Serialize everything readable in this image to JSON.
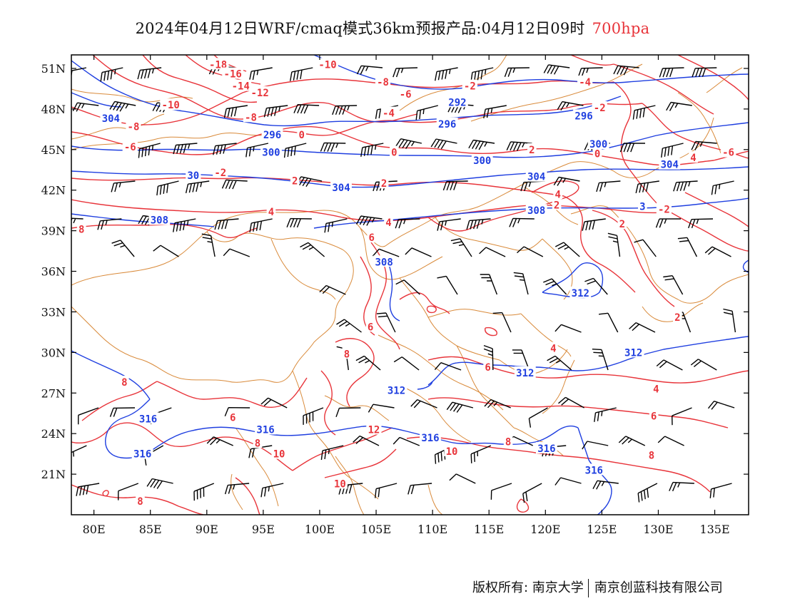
{
  "title": {
    "main": "2024年04月12日WRF/cmaq模式36km预报产品:04月12日09时",
    "level": "700hpa"
  },
  "colors": {
    "temperature_contour": "#e8343a",
    "height_contour": "#1f3fe0",
    "boundary": "#d98a3a",
    "wind_barb": "#000000",
    "level_text": "#e8343a"
  },
  "axes": {
    "lon_labels": [
      "80E",
      "85E",
      "90E",
      "95E",
      "100E",
      "105E",
      "110E",
      "115E",
      "120E",
      "125E",
      "130E",
      "135E"
    ],
    "lat_labels": [
      "51N",
      "48N",
      "45N",
      "42N",
      "39N",
      "36N",
      "33N",
      "30N",
      "27N",
      "24N",
      "21N"
    ],
    "lon_range": [
      78,
      138
    ],
    "lat_range": [
      18,
      52
    ]
  },
  "height_labels": [
    {
      "text": "304",
      "lon": 81.5,
      "lat": 47.3
    },
    {
      "text": "296",
      "lon": 111.3,
      "lat": 46.9
    },
    {
      "text": "296",
      "lon": 95.8,
      "lat": 46.1
    },
    {
      "text": "292",
      "lon": 112.2,
      "lat": 48.5
    },
    {
      "text": "296",
      "lon": 123.4,
      "lat": 47.5
    },
    {
      "text": "300",
      "lon": 95.7,
      "lat": 44.8
    },
    {
      "text": "300",
      "lon": 114.4,
      "lat": 44.2
    },
    {
      "text": "300",
      "lon": 124.7,
      "lat": 45.4
    },
    {
      "text": "30",
      "lon": 88.8,
      "lat": 43.1
    },
    {
      "text": "304",
      "lon": 101.9,
      "lat": 42.2
    },
    {
      "text": "304",
      "lon": 119.2,
      "lat": 43.0
    },
    {
      "text": "304",
      "lon": 131.0,
      "lat": 43.9
    },
    {
      "text": "308",
      "lon": 85.8,
      "lat": 39.8
    },
    {
      "text": "308",
      "lon": 119.2,
      "lat": 40.5
    },
    {
      "text": "3",
      "lon": 128.6,
      "lat": 40.8
    },
    {
      "text": "308",
      "lon": 105.7,
      "lat": 36.7
    },
    {
      "text": "312",
      "lon": 123.1,
      "lat": 34.4
    },
    {
      "text": "312",
      "lon": 127.8,
      "lat": 30.0
    },
    {
      "text": "312",
      "lon": 118.2,
      "lat": 28.5
    },
    {
      "text": "312",
      "lon": 106.8,
      "lat": 27.2
    },
    {
      "text": "316",
      "lon": 84.8,
      "lat": 25.1
    },
    {
      "text": "316",
      "lon": 84.3,
      "lat": 22.5
    },
    {
      "text": "316",
      "lon": 95.2,
      "lat": 24.3
    },
    {
      "text": "316",
      "lon": 109.8,
      "lat": 23.7
    },
    {
      "text": "316",
      "lon": 120.1,
      "lat": 22.9
    },
    {
      "text": "316",
      "lon": 124.3,
      "lat": 21.3
    }
  ],
  "temp_labels": [
    {
      "text": "-18",
      "lon": 91.0,
      "lat": 51.3
    },
    {
      "text": "-16",
      "lon": 92.3,
      "lat": 50.6
    },
    {
      "text": "-14",
      "lon": 93.0,
      "lat": 49.7
    },
    {
      "text": "-12",
      "lon": 94.7,
      "lat": 49.2
    },
    {
      "text": "-10",
      "lon": 86.8,
      "lat": 48.3
    },
    {
      "text": "-10",
      "lon": 100.7,
      "lat": 51.3
    },
    {
      "text": "-8",
      "lon": 83.5,
      "lat": 46.7
    },
    {
      "text": "-8",
      "lon": 105.6,
      "lat": 50.0
    },
    {
      "text": "-8",
      "lon": 93.9,
      "lat": 47.4
    },
    {
      "text": "-6",
      "lon": 83.2,
      "lat": 45.2
    },
    {
      "text": "-6",
      "lon": 107.6,
      "lat": 49.1
    },
    {
      "text": "-4",
      "lon": 106.1,
      "lat": 47.7
    },
    {
      "text": "-4",
      "lon": 123.5,
      "lat": 50.0
    },
    {
      "text": "-2",
      "lon": 113.3,
      "lat": 49.7
    },
    {
      "text": "-2",
      "lon": 124.8,
      "lat": 48.1
    },
    {
      "text": "0",
      "lon": 98.4,
      "lat": 46.1
    },
    {
      "text": "0",
      "lon": 106.6,
      "lat": 44.8
    },
    {
      "text": "0",
      "lon": 124.6,
      "lat": 44.7
    },
    {
      "text": "-2",
      "lon": 91.2,
      "lat": 43.3
    },
    {
      "text": "2",
      "lon": 97.8,
      "lat": 42.7
    },
    {
      "text": "2",
      "lon": 105.7,
      "lat": 42.5
    },
    {
      "text": "2",
      "lon": 118.8,
      "lat": 45.0
    },
    {
      "text": "4",
      "lon": 133.1,
      "lat": 44.4
    },
    {
      "text": "-6",
      "lon": 136.2,
      "lat": 44.8
    },
    {
      "text": "-2",
      "lon": 130.5,
      "lat": 40.6
    },
    {
      "text": "4",
      "lon": 95.7,
      "lat": 40.4
    },
    {
      "text": "4",
      "lon": 106.1,
      "lat": 39.6
    },
    {
      "text": "4",
      "lon": 121.1,
      "lat": 41.7
    },
    {
      "text": "2",
      "lon": 121.0,
      "lat": 40.9
    },
    {
      "text": "2",
      "lon": 126.8,
      "lat": 39.5
    },
    {
      "text": "8",
      "lon": 78.9,
      "lat": 39.1
    },
    {
      "text": "6",
      "lon": 104.6,
      "lat": 38.5
    },
    {
      "text": "6",
      "lon": 104.5,
      "lat": 31.9
    },
    {
      "text": "8",
      "lon": 102.4,
      "lat": 29.9
    },
    {
      "text": "6",
      "lon": 114.9,
      "lat": 28.9
    },
    {
      "text": "4",
      "lon": 120.7,
      "lat": 30.3
    },
    {
      "text": "2",
      "lon": 131.7,
      "lat": 32.6
    },
    {
      "text": "4",
      "lon": 129.8,
      "lat": 27.3
    },
    {
      "text": "6",
      "lon": 129.6,
      "lat": 25.3
    },
    {
      "text": "8",
      "lon": 129.4,
      "lat": 22.4
    },
    {
      "text": "8",
      "lon": 82.7,
      "lat": 27.8
    },
    {
      "text": "6",
      "lon": 92.3,
      "lat": 25.2
    },
    {
      "text": "8",
      "lon": 94.5,
      "lat": 23.3
    },
    {
      "text": "10",
      "lon": 96.4,
      "lat": 22.5
    },
    {
      "text": "12",
      "lon": 104.8,
      "lat": 24.3
    },
    {
      "text": "10",
      "lon": 111.7,
      "lat": 22.7
    },
    {
      "text": "8",
      "lon": 116.7,
      "lat": 23.4
    },
    {
      "text": "10",
      "lon": 101.8,
      "lat": 20.3
    },
    {
      "text": "8",
      "lon": 84.1,
      "lat": 19.0
    }
  ],
  "credit": {
    "left": "版权所有: 南京大学",
    "right": "南京创蓝科技有限公司"
  }
}
